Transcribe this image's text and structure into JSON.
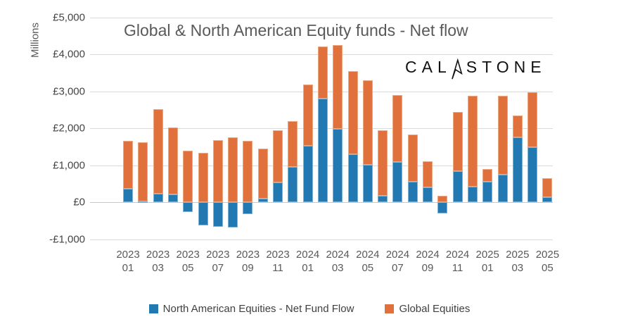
{
  "title": "Global & North American Equity funds - Net flow",
  "logo": {
    "left": "CAL",
    "right": "STONE"
  },
  "y_axis": {
    "title": "Millions",
    "ticks": [
      {
        "label": "£5,000",
        "value": 5000
      },
      {
        "label": "£4,000",
        "value": 4000
      },
      {
        "label": "£3,000",
        "value": 3000
      },
      {
        "label": "£2,000",
        "value": 2000
      },
      {
        "label": "£1,000",
        "value": 1000
      },
      {
        "label": "£0",
        "value": 0
      },
      {
        "label": "-£1,000",
        "value": -1000
      }
    ]
  },
  "legend": [
    {
      "label": "North American Equities - Net Fund Flow",
      "color": "#2279b2"
    },
    {
      "label": "Global Equities",
      "color": "#e0713c"
    }
  ],
  "colors": {
    "north_american": "#2279b2",
    "global": "#e0713c",
    "grid": "#d9d9d9",
    "text": "#595959"
  },
  "chart_data": {
    "type": "bar",
    "stacked": true,
    "title": "Global & North American Equity funds - Net flow",
    "ylabel": "Millions",
    "ylim": [
      -1000,
      5000
    ],
    "grid": true,
    "legend_position": "bottom",
    "x_tick_step": 2,
    "currency": "GBP",
    "units": "millions",
    "categories": [
      "2023-01",
      "2023-02",
      "2023-03",
      "2023-04",
      "2023-05",
      "2023-06",
      "2023-07",
      "2023-08",
      "2023-09",
      "2023-10",
      "2023-11",
      "2023-12",
      "2024-01",
      "2024-02",
      "2024-03",
      "2024-04",
      "2024-05",
      "2024-06",
      "2024-07",
      "2024-08",
      "2024-09",
      "2024-10",
      "2024-11",
      "2024-12",
      "2025-01",
      "2025-02",
      "2025-03",
      "2025-04",
      "2025-05"
    ],
    "series": [
      {
        "name": "North American Equities - Net Fund Flow",
        "color": "#2279b2",
        "values": [
          360,
          30,
          230,
          215,
          -255,
          -620,
          -655,
          -680,
          -310,
          110,
          530,
          965,
          1520,
          2800,
          1985,
          1300,
          1010,
          170,
          1090,
          565,
          410,
          -300,
          850,
          425,
          565,
          755,
          1760,
          1490,
          130
        ]
      },
      {
        "name": "Global Equities",
        "color": "#e0713c",
        "values": [
          1300,
          1590,
          2280,
          1805,
          1390,
          1330,
          1680,
          1755,
          1660,
          1340,
          1415,
          1235,
          1660,
          1410,
          2270,
          2240,
          2280,
          1780,
          1810,
          1275,
          695,
          170,
          1590,
          2450,
          335,
          2115,
          590,
          1480,
          520
        ]
      }
    ]
  }
}
